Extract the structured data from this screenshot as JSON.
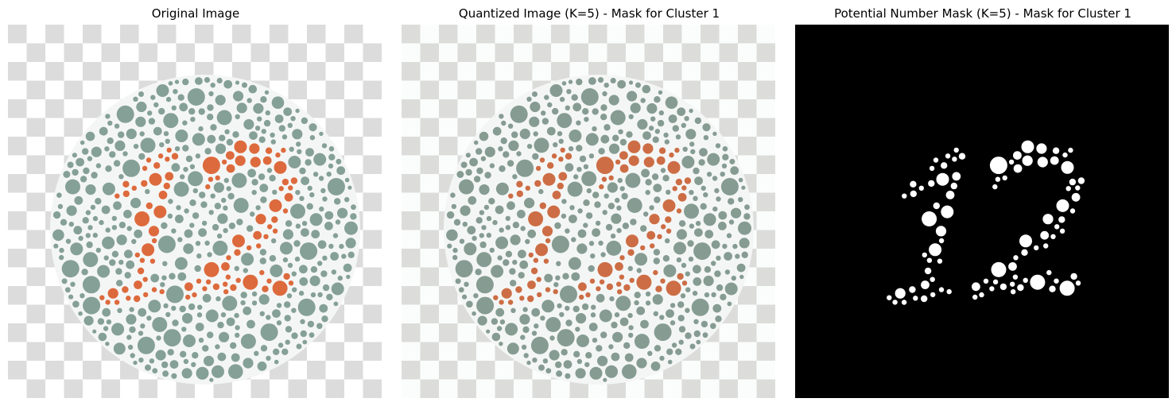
{
  "panels": [
    {
      "title": "Original Image",
      "variant": "original",
      "colors": {
        "plate": "#85a097",
        "figure": "#dd6a3d",
        "checker_dark": "#dcdcdc",
        "checker_light": "#ffffff"
      }
    },
    {
      "title": "Quantized Image (K=5) - Mask for Cluster 1",
      "variant": "quantized",
      "colors": {
        "plate": "#869c93",
        "figure": "#cd6d45",
        "checker_dark": "#dcdddb",
        "checker_light": "#fbfdfc"
      }
    },
    {
      "title": "Potential Number Mask (K=5) - Mask for Cluster 1",
      "variant": "mask",
      "colors": {
        "background": "#000000",
        "figure": "#ffffff"
      }
    }
  ],
  "plate_number": "12"
}
